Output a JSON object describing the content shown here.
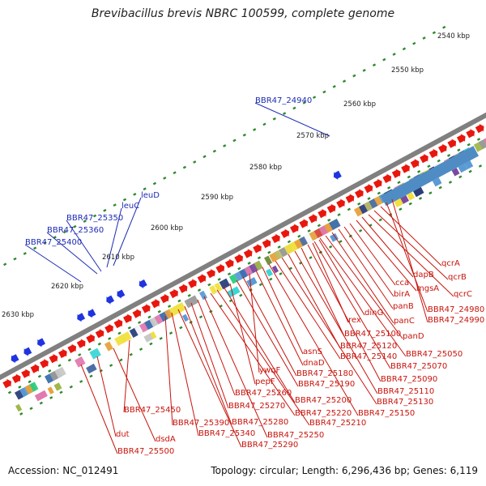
{
  "title": "Brevibacillus brevis NBRC 100599, complete genome",
  "footer": {
    "accession": "Accession: NC_012491",
    "summary": "Topology: circular; Length: 6,296,436 bp; Genes: 6,119"
  },
  "colors": {
    "forward_gene": "#e8170e",
    "reverse_gene": "#1f34e0",
    "leader_line": "#e8170e",
    "label_red": "#c8140c",
    "label_blue": "#1c2bb4",
    "axis_tick": "#2e8a2e",
    "backbone": "#808080"
  },
  "axis_ticks": [
    "2540 kbp",
    "2550 kbp",
    "2560 kbp",
    "2570 kbp",
    "2580 kbp",
    "2590 kbp",
    "2600 kbp",
    "2610 kbp",
    "2620 kbp",
    "2630 kbp"
  ],
  "labels_blue": [
    "BBR47_24940",
    "leuD",
    "leuC",
    "BBR47_25350",
    "BBR47_25360",
    "BBR47_25400"
  ],
  "labels_red": [
    "qcrA",
    "qcrB",
    "qcrC",
    "dapB",
    "mgsA",
    "cca",
    "birA",
    "panB",
    "panC",
    "panD",
    "dinG",
    "rex",
    "BBR47_24980",
    "BBR47_24990",
    "BBR47_25050",
    "BBR47_25070",
    "BBR47_25090",
    "BBR47_25100",
    "BBR47_25110",
    "BBR47_25120",
    "BBR47_25130",
    "BBR47_25140",
    "BBR47_25150",
    "asnS",
    "dnaD",
    "ywqF",
    "BBR47_25180",
    "BBR47_25190",
    "pepF",
    "BBR47_25200",
    "BBR47_25210",
    "BBR47_25220",
    "BBR47_25250",
    "BBR47_25260",
    "BBR47_25270",
    "BBR47_25280",
    "BBR47_25290",
    "BBR47_25340",
    "BBR47_25390",
    "BBR47_25450",
    "dsdA",
    "dut",
    "BBR47_25500"
  ]
}
